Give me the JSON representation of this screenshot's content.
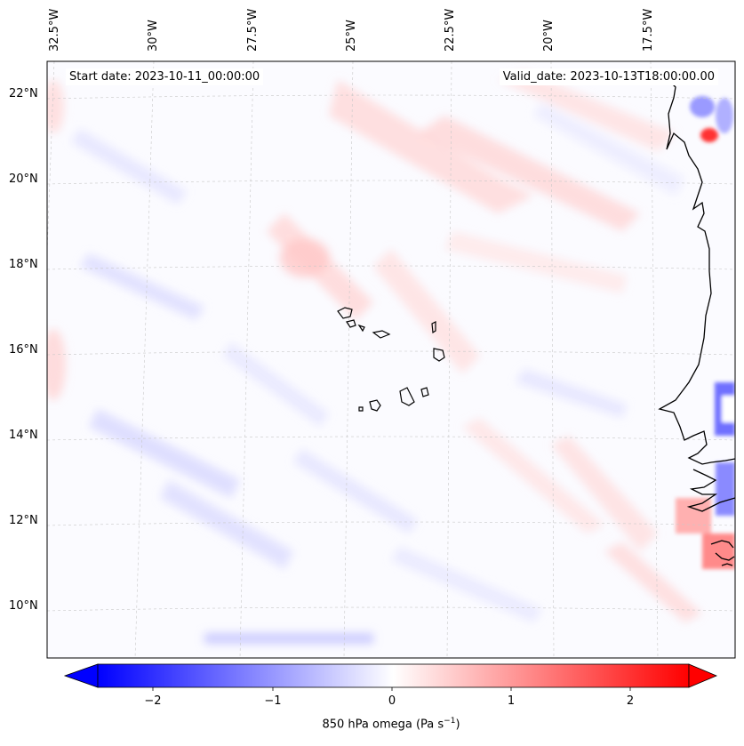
{
  "map": {
    "title_left": "Start date: 2023-10-11_00:00:00",
    "title_right": "Valid_date: 2023-10-13T18:00:00.00",
    "lon_labels": [
      "32.5°W",
      "30°W",
      "27.5°W",
      "25°W",
      "22.5°W",
      "20°W",
      "17.5°W"
    ],
    "lat_labels": [
      "22°N",
      "20°N",
      "18°N",
      "16°N",
      "14°N",
      "12°N",
      "10°N"
    ],
    "field": "850 hPa omega"
  },
  "colorbar": {
    "ticks": [
      "−2",
      "−1",
      "0",
      "1",
      "2"
    ],
    "label_main": "850 hPa omega (Pa s",
    "label_sup": "−1",
    "label_close": ")",
    "min": -2.6,
    "max": 2.6,
    "cmap": "bwr",
    "color_low": "#0000ff",
    "color_mid": "#ffffff",
    "color_high": "#ff0000"
  }
}
